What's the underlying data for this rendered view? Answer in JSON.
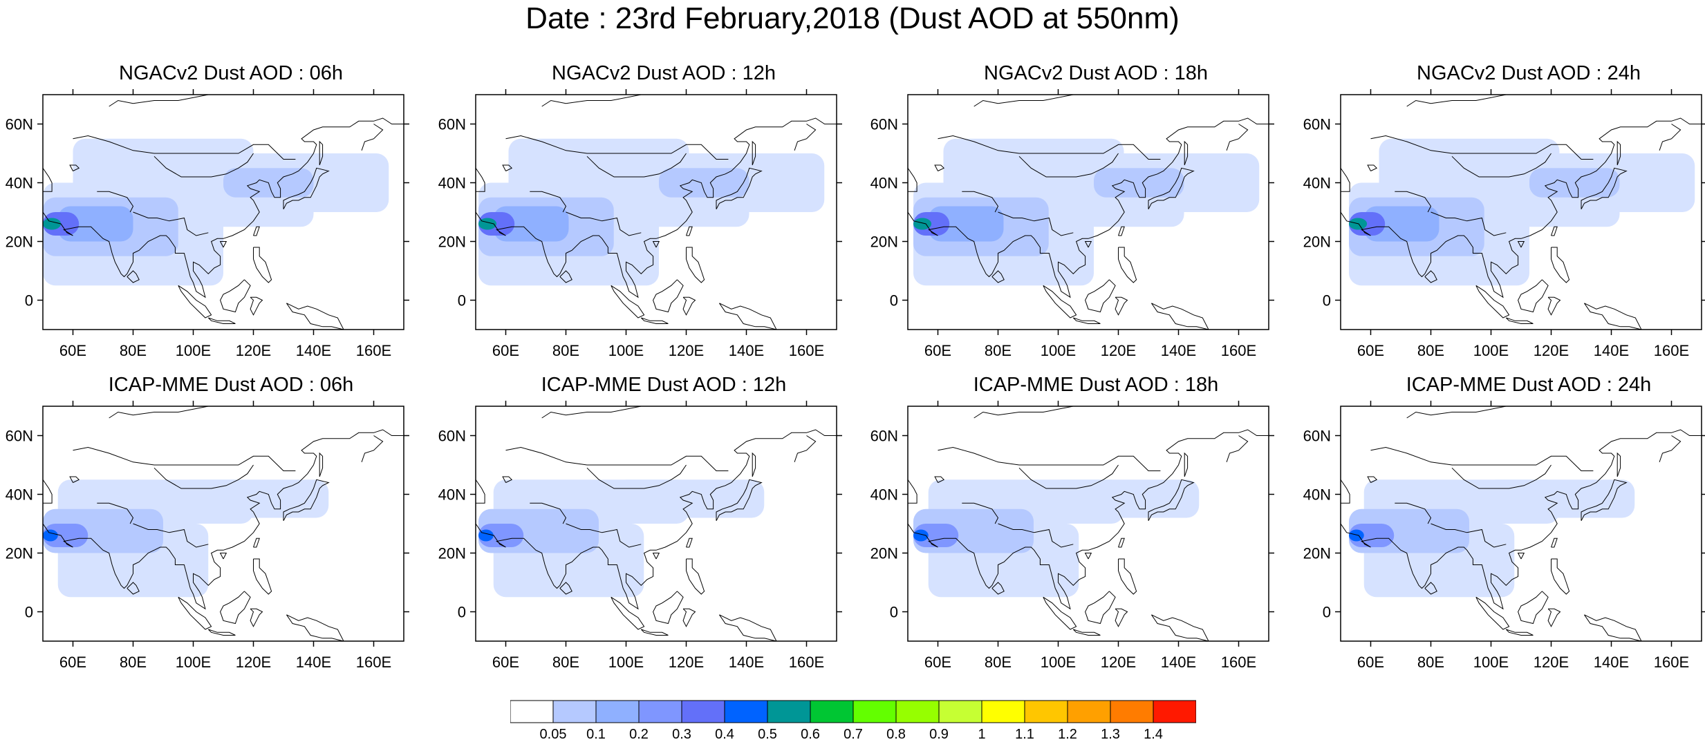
{
  "title": "Date : 23rd February,2018 (Dust AOD at 550nm)",
  "panels": [
    {
      "title": "NGACv2 Dust AOD : 06h"
    },
    {
      "title": "NGACv2 Dust AOD : 12h"
    },
    {
      "title": "NGACv2 Dust AOD : 18h"
    },
    {
      "title": "NGACv2 Dust AOD : 24h"
    },
    {
      "title": "ICAP-MME Dust AOD : 06h"
    },
    {
      "title": "ICAP-MME Dust AOD : 12h"
    },
    {
      "title": "ICAP-MME Dust AOD : 18h"
    },
    {
      "title": "ICAP-MME Dust AOD : 24h"
    }
  ],
  "lat_ticks": [
    "60N",
    "40N",
    "20N",
    "0"
  ],
  "lon_ticks": [
    "60E",
    "80E",
    "100E",
    "120E",
    "140E",
    "160E"
  ],
  "colorbar": {
    "labels": [
      "0.05",
      "0.1",
      "0.2",
      "0.3",
      "0.4",
      "0.5",
      "0.6",
      "0.7",
      "0.8",
      "0.9",
      "1",
      "1.1",
      "1.2",
      "1.3",
      "1.4"
    ],
    "colors": [
      "#ffffff",
      "#d6e2ff",
      "#b5c9ff",
      "#8fb0ff",
      "#7f96ff",
      "#6370f9",
      "#0063ff",
      "#009696",
      "#00c633",
      "#63ff00",
      "#96ff00",
      "#c6ff33",
      "#ffff00",
      "#ffc600",
      "#ffa000",
      "#ff7c00",
      "#ff1900"
    ]
  }
}
